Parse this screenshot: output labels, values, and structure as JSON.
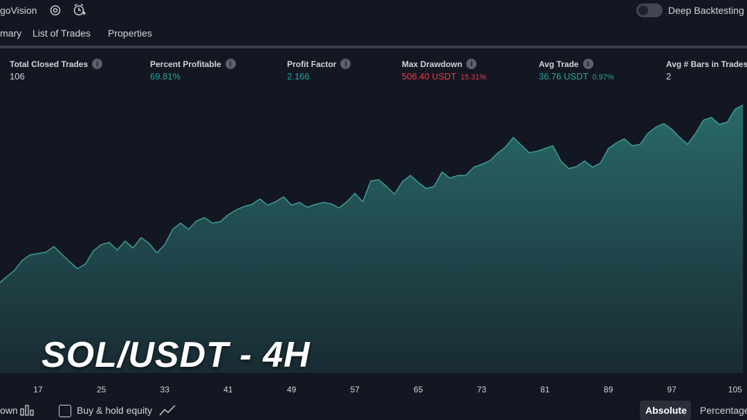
{
  "header": {
    "app_name": "goVision",
    "toggle_label": "Deep Backtesting"
  },
  "tabs": [
    "mary",
    "List of Trades",
    "Properties"
  ],
  "metrics": [
    {
      "label": "Total Closed Trades",
      "value": "106"
    },
    {
      "label": "Percent Profitable",
      "value": "69.81%"
    },
    {
      "label": "Profit Factor",
      "value": "2.166"
    },
    {
      "label": "Max Drawdown",
      "value": "506.40 USDT",
      "sub": "15.31%"
    },
    {
      "label": "Avg Trade",
      "value": "36.76 USDT",
      "sub": "0.97%"
    },
    {
      "label": "Avg # Bars in Trades",
      "value": "2"
    }
  ],
  "chart_data": {
    "type": "area",
    "color": "#3d9e96",
    "x": [
      12,
      13,
      14,
      15,
      16,
      17,
      18,
      19,
      20,
      21,
      22,
      23,
      24,
      25,
      26,
      27,
      28,
      29,
      30,
      31,
      32,
      33,
      34,
      35,
      36,
      37,
      38,
      39,
      40,
      41,
      42,
      43,
      44,
      45,
      46,
      47,
      48,
      49,
      50,
      51,
      52,
      53,
      54,
      55,
      56,
      57,
      58,
      59,
      60,
      61,
      62,
      63,
      64,
      65,
      66,
      67,
      68,
      69,
      70,
      71,
      72,
      73,
      74,
      75,
      76,
      77,
      78,
      79,
      80,
      81,
      82,
      83,
      84,
      85,
      86,
      87,
      88,
      89,
      90,
      91,
      92,
      93,
      94,
      95,
      96,
      97,
      98,
      99,
      100,
      101,
      102,
      103,
      104,
      105,
      106
    ],
    "values": [
      1290,
      1390,
      1480,
      1630,
      1710,
      1730,
      1750,
      1830,
      1720,
      1610,
      1510,
      1580,
      1770,
      1860,
      1890,
      1780,
      1910,
      1810,
      1960,
      1880,
      1740,
      1860,
      2080,
      2170,
      2080,
      2200,
      2250,
      2170,
      2190,
      2290,
      2360,
      2410,
      2440,
      2520,
      2430,
      2480,
      2550,
      2430,
      2470,
      2400,
      2440,
      2470,
      2450,
      2390,
      2480,
      2600,
      2480,
      2780,
      2800,
      2700,
      2590,
      2770,
      2860,
      2760,
      2670,
      2700,
      2910,
      2820,
      2860,
      2860,
      2980,
      3020,
      3070,
      3180,
      3270,
      3410,
      3300,
      3190,
      3210,
      3250,
      3290,
      3070,
      2960,
      2990,
      3070,
      2980,
      3040,
      3250,
      3330,
      3390,
      3290,
      3310,
      3470,
      3560,
      3610,
      3530,
      3410,
      3310,
      3470,
      3660,
      3700,
      3600,
      3630,
      3820,
      3880
    ],
    "xlim": [
      12.2,
      106.5
    ],
    "ylim": [
      0,
      4200
    ],
    "xticks": [
      17,
      25,
      33,
      41,
      49,
      57,
      65,
      73,
      81,
      89,
      97,
      105
    ]
  },
  "overlay_title": "SOL/USDT - 4H",
  "footer": {
    "left_label": "own",
    "checkbox_label": "Buy & hold equity",
    "buttons": [
      "Absolute",
      "Percentage"
    ]
  }
}
